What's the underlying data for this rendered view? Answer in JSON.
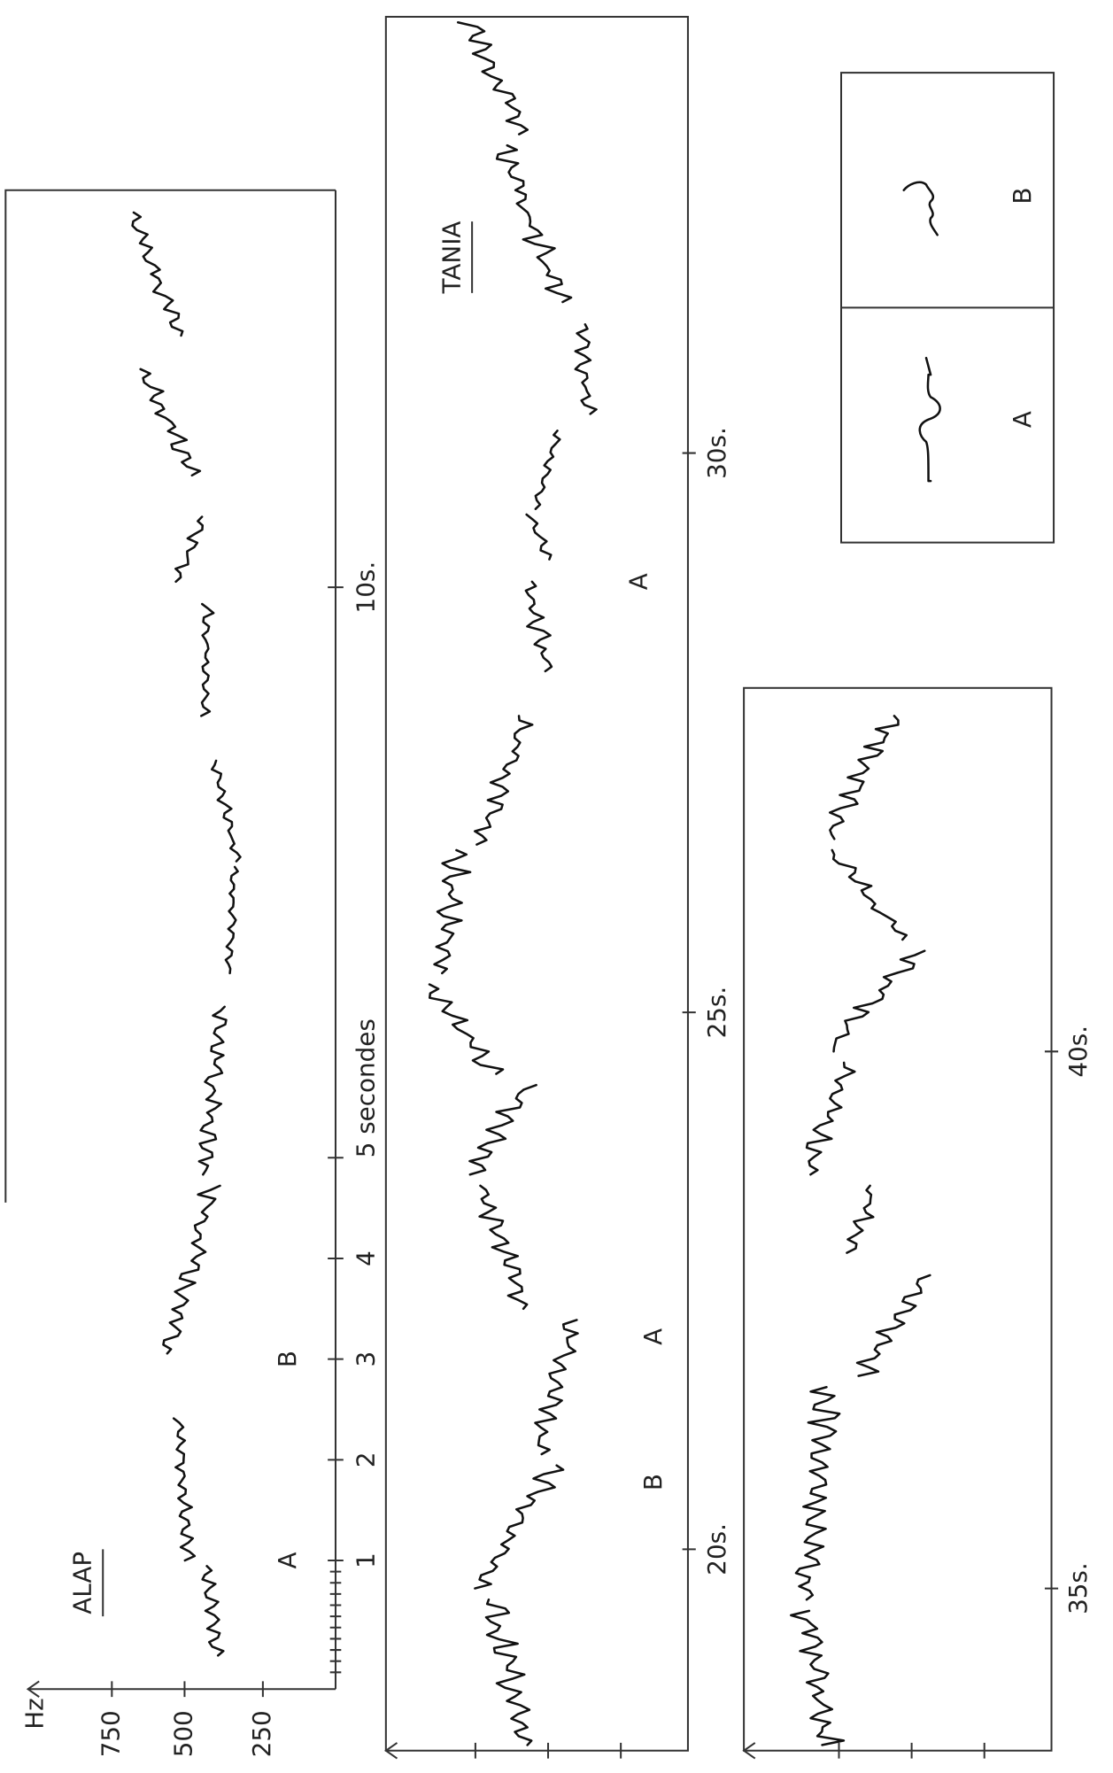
{
  "frequency_axis": {
    "unit": "Hz",
    "ticks": [
      750,
      500,
      250
    ]
  },
  "panels": [
    {
      "title": "ALAP",
      "labels": [
        "A",
        "B"
      ],
      "time_labels": [
        "1",
        "2",
        "3",
        "4",
        "5 secondes",
        "10s."
      ]
    },
    {
      "title": "TANIA",
      "labels": [
        "B",
        "A",
        "A"
      ],
      "time_labels": [
        "20s.",
        "25s.",
        "30s."
      ]
    },
    {
      "time_labels": [
        "35s.",
        "40s."
      ]
    },
    {
      "labels": [
        "A",
        "B"
      ]
    }
  ]
}
